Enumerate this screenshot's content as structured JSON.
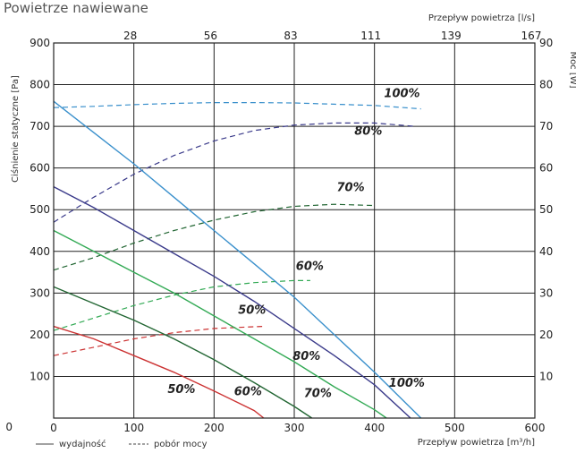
{
  "chart_data": {
    "type": "line",
    "title": "Powietrze nawiewane",
    "ylabel_left": "Ciśnienie statyczne [Pa]",
    "ylabel_right": "Moc [W]",
    "xlabel_bottom": "Przepływ powietrza [m³/h]",
    "xlabel_top": "Przepływ powietrza [l/s]",
    "xlim": [
      0,
      600
    ],
    "ylim_left": [
      0,
      900
    ],
    "ylim_right": [
      0,
      90
    ],
    "x_ticks": [
      0,
      100,
      200,
      300,
      400,
      500,
      600
    ],
    "y_ticks_left": [
      0,
      100,
      200,
      300,
      400,
      500,
      600,
      700,
      800,
      900
    ],
    "y_ticks_right": [
      10,
      20,
      30,
      40,
      50,
      60,
      70,
      80,
      90
    ],
    "top_ticks": [
      {
        "x": 100,
        "label": "28"
      },
      {
        "x": 200,
        "label": "56"
      },
      {
        "x": 300,
        "label": "83"
      },
      {
        "x": 400,
        "label": "111"
      },
      {
        "x": 500,
        "label": "139"
      },
      {
        "x": 600,
        "label": "167"
      }
    ],
    "grid": true,
    "legend": [
      {
        "style": "solid",
        "label": "wydajność"
      },
      {
        "style": "dashed",
        "label": "pobór mocy"
      }
    ],
    "performance_curves": [
      {
        "color": "#cc3333",
        "x": [
          0,
          50,
          100,
          150,
          200,
          250,
          262
        ],
        "y": [
          220,
          190,
          150,
          110,
          65,
          18,
          0
        ]
      },
      {
        "color": "#226633",
        "x": [
          0,
          50,
          100,
          150,
          200,
          250,
          300,
          322
        ],
        "y": [
          315,
          275,
          235,
          190,
          140,
          85,
          28,
          0
        ]
      },
      {
        "color": "#33aa55",
        "x": [
          0,
          50,
          100,
          150,
          200,
          250,
          300,
          350,
          400,
          415
        ],
        "y": [
          450,
          400,
          350,
          300,
          245,
          190,
          135,
          75,
          20,
          0
        ]
      },
      {
        "color": "#3a3a8a",
        "x": [
          0,
          50,
          100,
          150,
          200,
          250,
          300,
          350,
          400,
          445
        ],
        "y": [
          555,
          505,
          450,
          395,
          340,
          280,
          215,
          150,
          80,
          0
        ]
      },
      {
        "color": "#3a90cc",
        "x": [
          0,
          50,
          100,
          150,
          200,
          250,
          300,
          350,
          400,
          458
        ],
        "y": [
          760,
          685,
          610,
          530,
          450,
          370,
          290,
          200,
          110,
          0
        ]
      }
    ],
    "power_curves": [
      {
        "color": "#cc3333",
        "x": [
          0,
          50,
          100,
          150,
          200,
          260
        ],
        "y": [
          15,
          17,
          19,
          20.5,
          21.5,
          22
        ]
      },
      {
        "color": "#33aa55",
        "x": [
          0,
          50,
          100,
          150,
          200,
          250,
          300,
          320
        ],
        "y": [
          21,
          24,
          27,
          29.5,
          31.5,
          32.5,
          33,
          33
        ]
      },
      {
        "color": "#226633",
        "x": [
          0,
          50,
          100,
          150,
          200,
          250,
          300,
          350,
          400
        ],
        "y": [
          35.5,
          38.5,
          42,
          45,
          47.5,
          49.5,
          50.8,
          51.3,
          51
        ]
      },
      {
        "color": "#3a3a8a",
        "x": [
          0,
          50,
          100,
          150,
          200,
          250,
          300,
          350,
          400,
          450
        ],
        "y": [
          47,
          53,
          58.5,
          63,
          66.5,
          69,
          70.3,
          70.8,
          70.8,
          70
        ]
      },
      {
        "color": "#3a90cc",
        "x": [
          0,
          50,
          100,
          150,
          200,
          250,
          300,
          350,
          400,
          458
        ],
        "y": [
          74.5,
          74.8,
          75.2,
          75.5,
          75.7,
          75.7,
          75.6,
          75.3,
          75,
          74.2
        ]
      }
    ],
    "annotations": [
      {
        "text": "100%",
        "x": 412,
        "y": 770
      },
      {
        "text": "80%",
        "x": 375,
        "y": 680
      },
      {
        "text": "70%",
        "x": 353,
        "y": 545
      },
      {
        "text": "60%",
        "x": 302,
        "y": 355
      },
      {
        "text": "50%",
        "x": 230,
        "y": 250
      },
      {
        "text": "80%",
        "x": 298,
        "y": 140
      },
      {
        "text": "100%",
        "x": 418,
        "y": 75
      },
      {
        "text": "50%",
        "x": 142,
        "y": 60
      },
      {
        "text": "60%",
        "x": 225,
        "y": 55
      },
      {
        "text": "70%",
        "x": 312,
        "y": 50
      }
    ]
  }
}
